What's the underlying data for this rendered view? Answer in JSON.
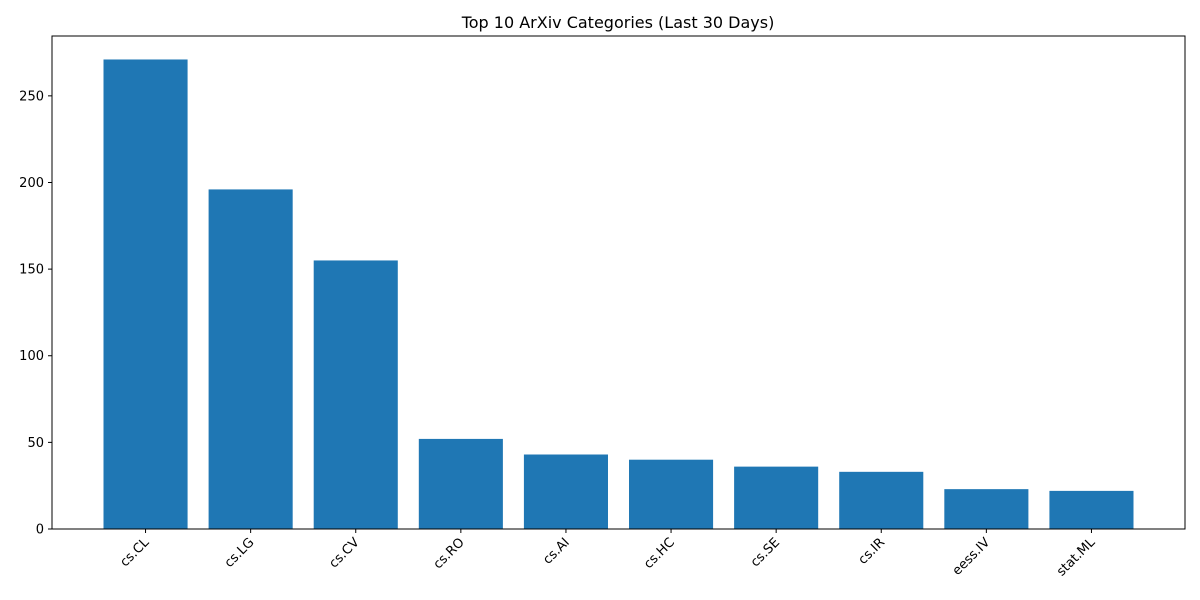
{
  "chart_data": {
    "type": "bar",
    "title": "Top 10 ArXiv Categories (Last 30 Days)",
    "xlabel": "",
    "ylabel": "",
    "categories": [
      "cs.CL",
      "cs.LG",
      "cs.CV",
      "cs.RO",
      "cs.AI",
      "cs.HC",
      "cs.SE",
      "cs.IR",
      "eess.IV",
      "stat.ML"
    ],
    "values": [
      271,
      196,
      155,
      52,
      43,
      40,
      36,
      33,
      23,
      22
    ],
    "ylim": [
      0,
      284.55
    ],
    "yticks": [
      0,
      50,
      100,
      150,
      200,
      250
    ],
    "bar_color": "#1f77b4",
    "grid": false,
    "legend": "none"
  }
}
